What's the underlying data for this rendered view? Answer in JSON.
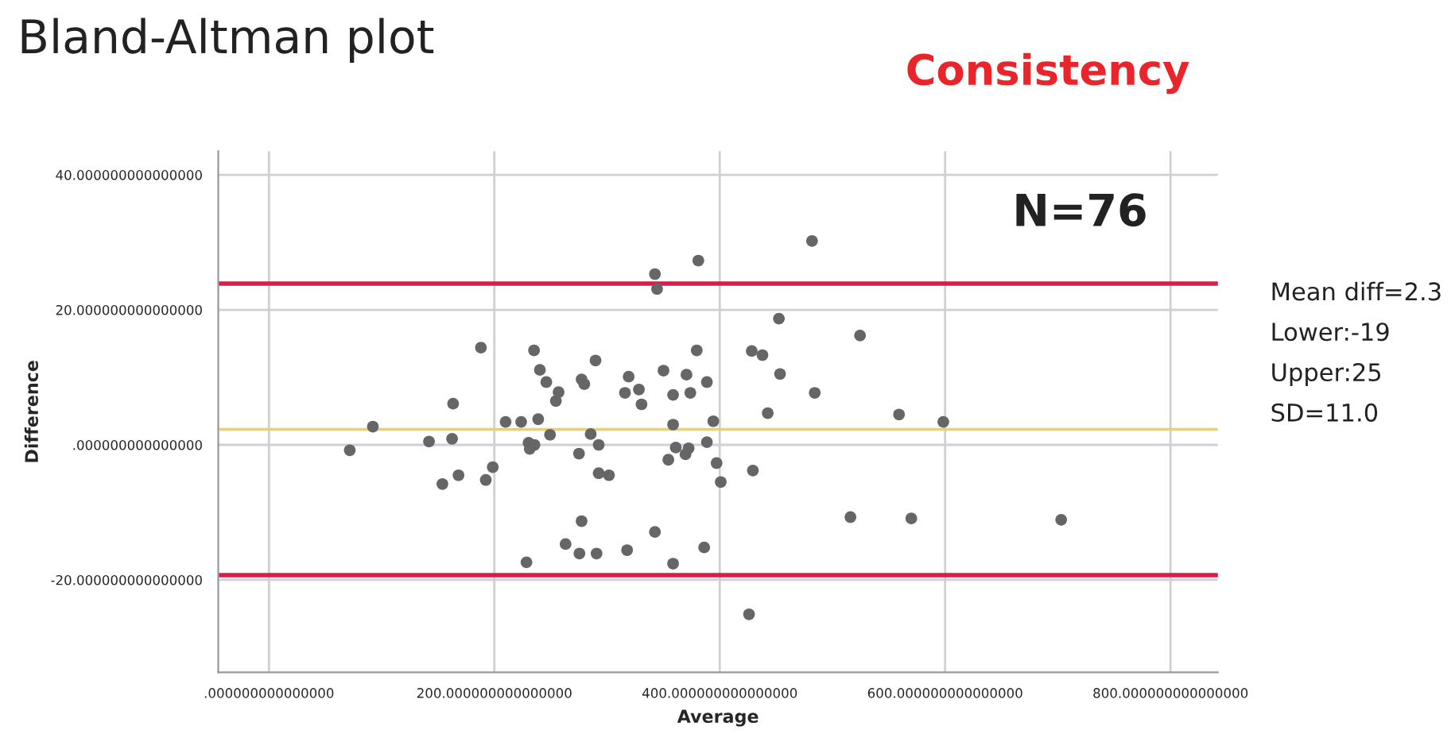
{
  "chart_data": {
    "type": "scatter",
    "title": "Bland-Altman plot",
    "subtitle": "Consistency",
    "xlabel": "Average",
    "ylabel": "Difference",
    "x": [
      71.7,
      92.2,
      142.0,
      153.9,
      162.5,
      163.4,
      168.2,
      188.1,
      192.4,
      198.6,
      210.0,
      223.8,
      228.5,
      230.4,
      231.4,
      235.2,
      235.6,
      238.9,
      240.4,
      246.1,
      249.4,
      254.6,
      257.0,
      263.2,
      275.1,
      275.5,
      277.4,
      277.4,
      279.8,
      285.5,
      289.8,
      290.7,
      292.6,
      292.6,
      301.7,
      315.9,
      317.8,
      319.2,
      328.3,
      330.6,
      342.5,
      342.5,
      344.4,
      350.1,
      354.4,
      358.6,
      358.6,
      358.6,
      361.0,
      370.5,
      369.6,
      372.4,
      373.9,
      379.6,
      381.0,
      386.2,
      388.6,
      388.6,
      394.3,
      397.2,
      400.9,
      426.0,
      428.4,
      429.4,
      437.9,
      442.6,
      452.5,
      453.5,
      481.9,
      484.3,
      516.0,
      524.5,
      559.1,
      570.0,
      598.4,
      703.0
    ],
    "series": [
      {
        "color": "#666666",
        "values": [
          -0.8,
          2.7,
          0.5,
          -5.8,
          0.9,
          6.1,
          -4.5,
          14.4,
          -5.2,
          -3.3,
          3.4,
          3.4,
          -17.4,
          0.3,
          -0.6,
          14.0,
          0.0,
          3.8,
          11.1,
          9.3,
          1.5,
          6.5,
          7.8,
          -14.7,
          -1.3,
          -16.1,
          -11.3,
          9.7,
          9.0,
          1.6,
          12.5,
          -16.1,
          0.0,
          -4.2,
          -4.5,
          7.7,
          -15.6,
          10.1,
          8.2,
          6.0,
          -12.9,
          25.3,
          23.1,
          11.0,
          -2.2,
          7.4,
          3.0,
          -17.6,
          -0.4,
          10.4,
          -1.4,
          -0.5,
          7.7,
          14.0,
          27.3,
          -15.2,
          9.3,
          0.4,
          3.5,
          -2.7,
          -5.5,
          -25.1,
          13.9,
          -3.8,
          13.3,
          4.7,
          18.7,
          10.5,
          30.2,
          7.7,
          -10.7,
          16.2,
          4.5,
          -10.9,
          3.4,
          -11.1
        ]
      }
    ],
    "xlim": [
      -45,
      842
    ],
    "ylim": [
      -33.7,
      43.5
    ],
    "xticks": [
      {
        "value": 0,
        "label": ".000000000000000"
      },
      {
        "value": 200,
        "label": "200.000000000000000"
      },
      {
        "value": 400,
        "label": "400.000000000000000"
      },
      {
        "value": 600,
        "label": "600.000000000000000"
      },
      {
        "value": 800,
        "label": "800.000000000000000"
      }
    ],
    "yticks": [
      {
        "value": -20,
        "label": "-20.000000000000000"
      },
      {
        "value": 0,
        "label": ".000000000000000"
      },
      {
        "value": 20,
        "label": "20.000000000000000"
      },
      {
        "value": 40,
        "label": "40.000000000000000"
      }
    ],
    "ref_lines": [
      {
        "axis": "y",
        "value": 23.9,
        "color": "#d81e48"
      },
      {
        "axis": "y",
        "value": -19.3,
        "color": "#d81e48"
      },
      {
        "axis": "y",
        "value": 2.3,
        "color": "#f0d060"
      }
    ],
    "annotations": [
      "N=76",
      "Mean diff=2.3",
      "Lower:-19",
      "Upper:25",
      "SD=11.0"
    ],
    "grid": true,
    "marker": "circle"
  }
}
